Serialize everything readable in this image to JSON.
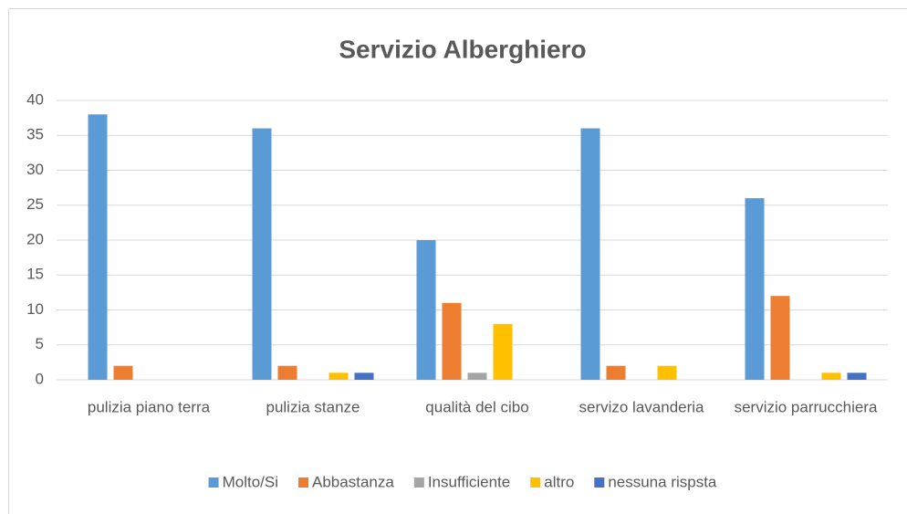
{
  "chart_data": {
    "type": "bar",
    "title": "Servizio Alberghiero",
    "categories": [
      "pulizia piano terra",
      "pulizia stanze",
      "qualità del cibo",
      "servizo lavanderia",
      "servizio parrucchiera"
    ],
    "series": [
      {
        "name": "Molto/Si",
        "color": "#5b9bd5",
        "values": [
          38,
          36,
          20,
          36,
          26
        ]
      },
      {
        "name": "Abbastanza",
        "color": "#ed7d31",
        "values": [
          2,
          2,
          11,
          2,
          12
        ]
      },
      {
        "name": "Insufficiente",
        "color": "#a5a5a5",
        "values": [
          0,
          0,
          1,
          0,
          0
        ]
      },
      {
        "name": "altro",
        "color": "#ffc000",
        "values": [
          0,
          1,
          8,
          2,
          1
        ]
      },
      {
        "name": "nessuna rispsta",
        "color": "#4472c4",
        "values": [
          0,
          1,
          0,
          0,
          1
        ]
      }
    ],
    "ylim": [
      0,
      40
    ],
    "yticks": [
      0,
      5,
      10,
      15,
      20,
      25,
      30,
      35,
      40
    ],
    "grid": true,
    "legend": "bottom"
  }
}
